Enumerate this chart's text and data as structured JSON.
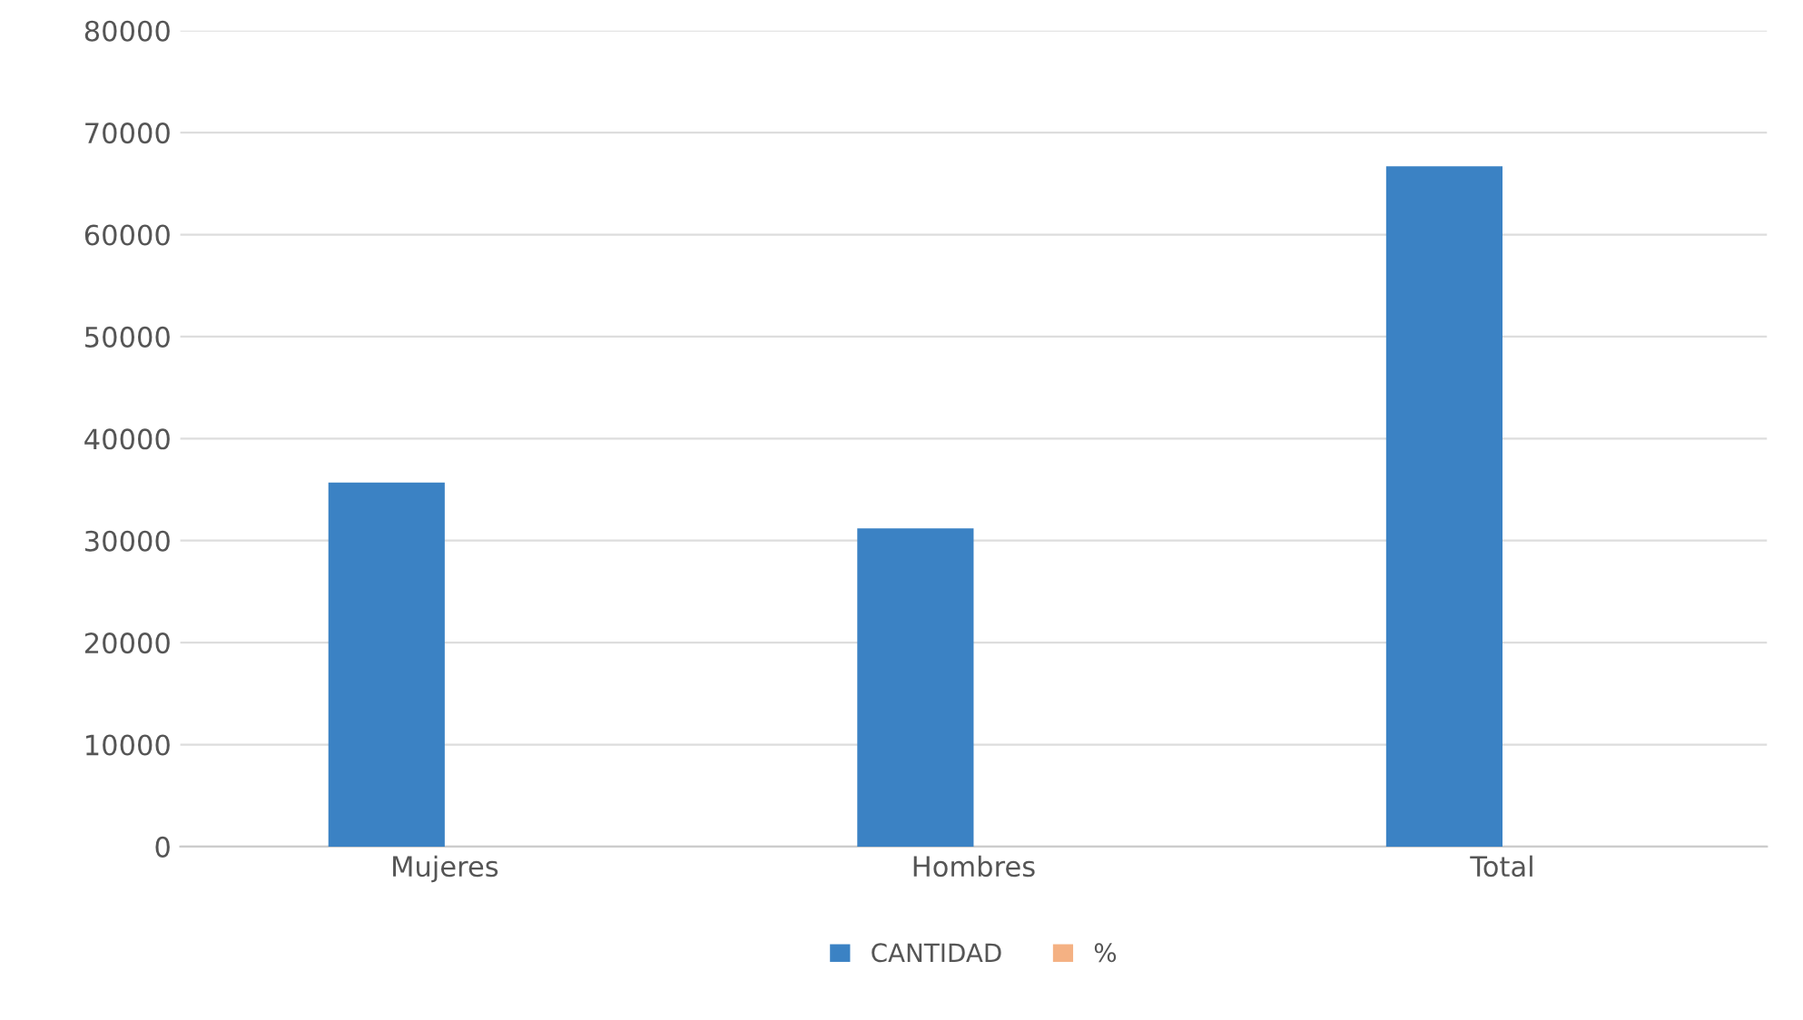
{
  "chart_data": {
    "type": "bar",
    "categories": [
      "Mujeres",
      "Hombres",
      "Total"
    ],
    "series": [
      {
        "name": "CANTIDAD",
        "color": "#3b82c4",
        "values": [
          35700,
          31200,
          66700
        ]
      },
      {
        "name": "%",
        "color": "#f4b183",
        "values": [
          null,
          null,
          null
        ]
      }
    ],
    "ylim": [
      0,
      80000
    ],
    "yticks": [
      0,
      10000,
      20000,
      30000,
      40000,
      50000,
      60000,
      70000,
      80000
    ],
    "grid": "y",
    "legend": "bottom"
  }
}
